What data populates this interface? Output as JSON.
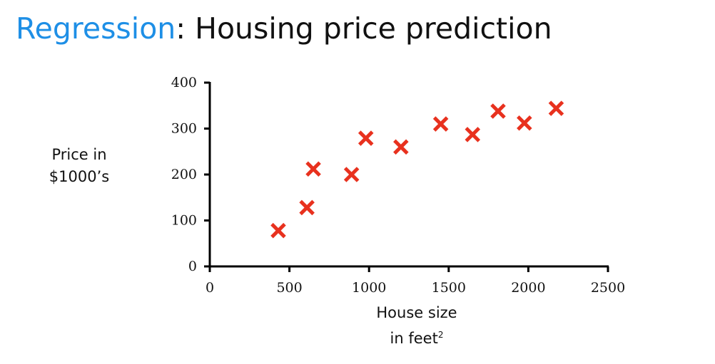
{
  "title": {
    "accent": "Regression",
    "rest": ": Housing price prediction"
  },
  "chart_data": {
    "type": "scatter",
    "title": "",
    "ylabel_lines": [
      "Price in",
      "$1000’s"
    ],
    "xlabel_line1": "House size",
    "xlabel_line2": "in feet",
    "xlabel_superscript": "2",
    "xlim": [
      0,
      2500
    ],
    "ylim": [
      0,
      400
    ],
    "xticks": [
      0,
      500,
      1000,
      1500,
      2000,
      2500
    ],
    "yticks": [
      0,
      100,
      200,
      300,
      400
    ],
    "grid": false,
    "marker": "x",
    "marker_color": "#e8311e",
    "points": [
      {
        "x": 430,
        "y": 78
      },
      {
        "x": 610,
        "y": 128
      },
      {
        "x": 650,
        "y": 212
      },
      {
        "x": 890,
        "y": 200
      },
      {
        "x": 980,
        "y": 279
      },
      {
        "x": 1200,
        "y": 260
      },
      {
        "x": 1450,
        "y": 310
      },
      {
        "x": 1650,
        "y": 287
      },
      {
        "x": 1810,
        "y": 338
      },
      {
        "x": 1975,
        "y": 312
      },
      {
        "x": 2175,
        "y": 344
      }
    ]
  }
}
